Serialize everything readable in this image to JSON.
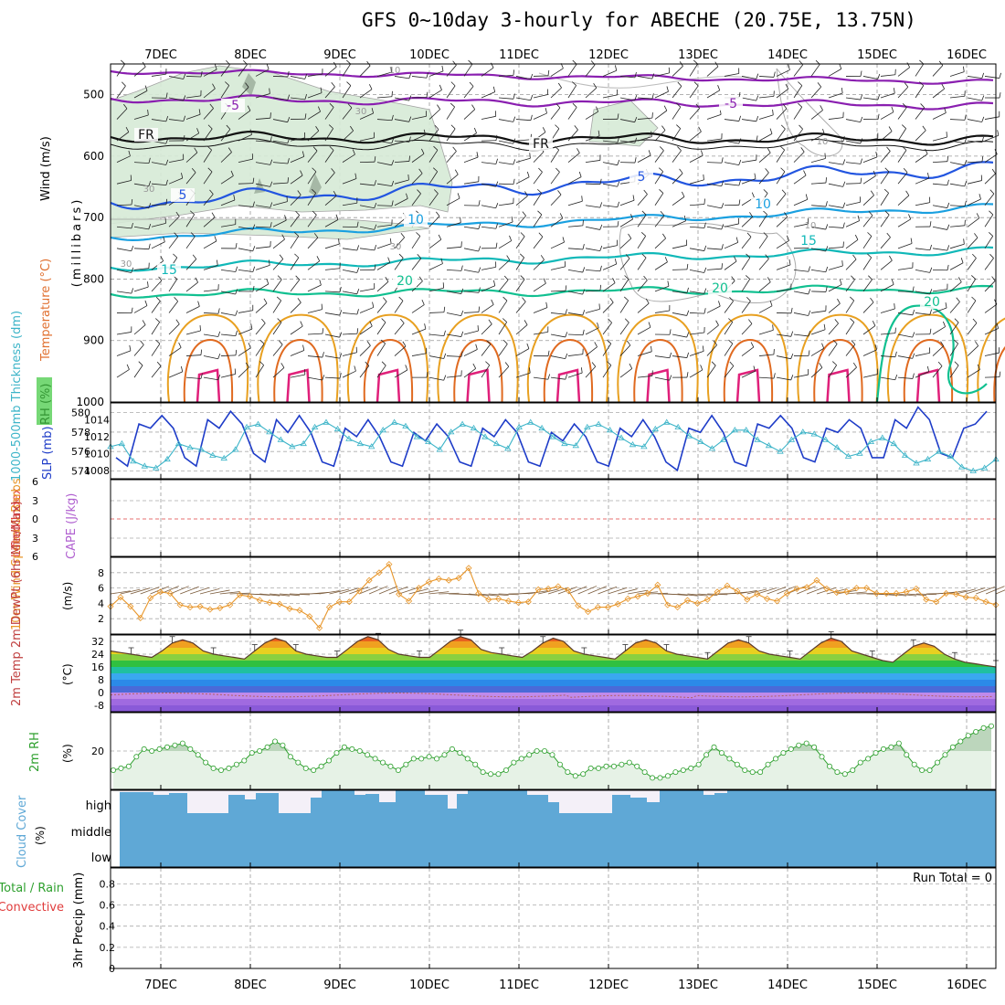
{
  "title": "GFS 0~10day 3-hourly for ABECHE (20.75E, 13.75N)",
  "days": [
    "7DEC",
    "8DEC",
    "9DEC",
    "10DEC",
    "11DEC",
    "12DEC",
    "13DEC",
    "14DEC",
    "15DEC",
    "16DEC"
  ],
  "panels": {
    "upper": {
      "ylabel_parts": [
        "RH (%)",
        "Temperature (°C)",
        "Wind (m/s)"
      ],
      "ylabel_unit": "(millibars)",
      "yticks": [
        "500",
        "600",
        "700",
        "800",
        "900",
        "1000"
      ],
      "temp_labels": [
        "-5",
        "FR",
        "5",
        "10",
        "15",
        "20"
      ],
      "rh_labels": [
        "10",
        "30"
      ]
    },
    "slp": {
      "left_label": "1000-500mb Thickness (dm)",
      "right_label": "SLP (mb)",
      "left_ticks": [
        "574",
        "576",
        "578",
        "580"
      ],
      "right_ticks": [
        "1008",
        "1010",
        "1012",
        "1014"
      ]
    },
    "cape": {
      "label_li": "Lifted Index",
      "label_cape": "CAPE (J/kg)",
      "ticks": [
        "6",
        "3",
        "0",
        "3",
        "6"
      ]
    },
    "wind10": {
      "label": "10m Wind Speed & Barbs",
      "unit": "(m/s)",
      "ticks": [
        "2",
        "4",
        "6",
        "8"
      ]
    },
    "temp2m": {
      "label": "2m Temp 2m DewPt (6hr Min/Max)",
      "unit": "(°C)",
      "ticks": [
        "-8",
        "0",
        "8",
        "16",
        "24",
        "32"
      ]
    },
    "rh2m": {
      "label": "2m RH",
      "unit": "(%)",
      "ticks": [
        "20"
      ]
    },
    "cloud": {
      "label": "Cloud Cover",
      "unit": "(%)",
      "levels": [
        "high",
        "middle",
        "low"
      ]
    },
    "precip": {
      "label_total": "Total / Rain",
      "label_conv": "Convective",
      "label_axis": "3hr Precip (mm)",
      "ticks": [
        "0",
        "0.2",
        "0.4",
        "0.6",
        "0.8"
      ],
      "run_total": "Run Total = 0"
    }
  },
  "colors": {
    "slp": "#1e3cc8",
    "thickness": "#3cb4c8",
    "wind": "#e8962a",
    "rh": "#2ea02e",
    "cloud": "#5fa8d6",
    "li": "#e03c3c",
    "cape": "#b060d0"
  },
  "chart_data": [
    {
      "type": "line",
      "title": "SLP / 1000-500mb Thickness",
      "ylim_slp": [
        1007,
        1016
      ],
      "series": [
        {
          "name": "SLP (mb)",
          "values": [
            1009.5,
            1008.5,
            1013.5,
            1013,
            1014.5,
            1013,
            1009.5,
            1008.5,
            1014,
            1013,
            1015,
            1013.5,
            1010,
            1009,
            1014,
            1012.5,
            1014.5,
            1012.5,
            1009,
            1008.5,
            1013,
            1012,
            1014,
            1012,
            1009,
            1008.5,
            1012.5,
            1011.5,
            1013.5,
            1012,
            1009,
            1008.5,
            1013,
            1012,
            1014,
            1012.5,
            1009,
            1008.5,
            1012.5,
            1011.5,
            1013.5,
            1012,
            1009,
            1008.5,
            1013,
            1012,
            1014,
            1012,
            1009,
            1008,
            1013,
            1012.5,
            1014.5,
            1012.5,
            1009,
            1008.5,
            1013.5,
            1013,
            1014.5,
            1013,
            1009.5,
            1009,
            1013,
            1012.5,
            1014,
            1013,
            1009.5,
            1009.5,
            1014,
            1013,
            1015.5,
            1014,
            1010,
            1009.5,
            1013,
            1013.5,
            1015
          ]
        },
        {
          "name": "1000-500mb Thickness (dm)",
          "values": [
            576.5,
            576.8,
            575,
            574.5,
            574.3,
            575.2,
            576.8,
            576.4,
            576.2,
            575.6,
            575.3,
            576.2,
            578.5,
            578.8,
            578,
            577.2,
            576.5,
            576.8,
            578.5,
            579,
            578.3,
            577.3,
            576.8,
            576.5,
            578.2,
            579,
            578.6,
            577.5,
            577,
            576.2,
            578,
            578.8,
            578.4,
            577.5,
            576.8,
            576.3,
            578.5,
            579,
            578.4,
            577.5,
            576.8,
            576.6,
            578.5,
            578.8,
            578.2,
            577.4,
            576.7,
            576.5,
            578.3,
            579,
            578.5,
            577.6,
            577,
            576.3,
            577.2,
            578.2,
            578.2,
            577.2,
            576.6,
            576,
            577.2,
            578,
            577.8,
            577.2,
            576.4,
            575.5,
            575.8,
            577,
            577.4,
            576.8,
            575.6,
            574.8,
            575.2,
            576,
            575.5,
            574.4,
            574,
            574.3,
            575.2
          ]
        }
      ]
    },
    {
      "type": "line",
      "title": "10m Wind Speed",
      "ylim": [
        0,
        10
      ],
      "values": [
        3.6,
        4.8,
        3.6,
        2.1,
        4.7,
        5.5,
        5.3,
        3.8,
        3.5,
        3.6,
        3.2,
        3.4,
        3.8,
        5.1,
        4.9,
        4.4,
        4.1,
        3.9,
        3.3,
        3.1,
        2.3,
        0.8,
        3.5,
        4.2,
        4.2,
        5.6,
        7,
        8,
        9.1,
        5.2,
        4.3,
        6,
        6.8,
        7.2,
        7,
        7.3,
        8.6,
        5.3,
        4.5,
        4.6,
        4.3,
        4.1,
        4.2,
        5.8,
        5.9,
        6.2,
        5.7,
        3.7,
        2.9,
        3.5,
        3.5,
        3.9,
        4.6,
        4.9,
        5.3,
        6.4,
        3.8,
        3.5,
        4.4,
        4,
        4.5,
        5.5,
        6.3,
        5.6,
        4.5,
        5.2,
        4.6,
        4.3,
        5.3,
        5.9,
        6.1,
        7,
        5.9,
        5.4,
        5.5,
        6,
        6,
        5.3,
        5.3,
        5.3,
        5.5,
        5.9,
        4.5,
        4.2,
        5.3,
        5.2,
        4.8,
        4.7,
        4.2,
        3.8
      ]
    },
    {
      "type": "area",
      "title": "2m Temp",
      "ylim": [
        -12,
        36
      ],
      "values": [
        26,
        25,
        24,
        23,
        22,
        26,
        31,
        33,
        31,
        26,
        24,
        23,
        22,
        21,
        26,
        31,
        34,
        32,
        26,
        24,
        23,
        22,
        22,
        27,
        32,
        35,
        33,
        27,
        24,
        23,
        22,
        22,
        27,
        32,
        35,
        33,
        27,
        25,
        24,
        23,
        22,
        26,
        31,
        34,
        32,
        26,
        24,
        23,
        22,
        21,
        26,
        31,
        33,
        31,
        26,
        24,
        23,
        22,
        21,
        26,
        31,
        33,
        31,
        26,
        24,
        23,
        22,
        21,
        26,
        31,
        34,
        32,
        26,
        24,
        22,
        20,
        19,
        24,
        29,
        31,
        29,
        24,
        21,
        19,
        18,
        17,
        16
      ]
    },
    {
      "type": "line",
      "title": "2m RH",
      "ylim": [
        0,
        40
      ],
      "values": [
        10,
        11,
        12,
        17,
        21,
        20,
        21,
        22,
        23,
        24,
        21,
        18,
        14,
        11,
        10,
        11,
        13,
        15,
        19,
        20,
        22,
        25,
        23,
        17,
        14,
        11,
        10,
        12,
        15,
        19,
        22,
        21,
        20,
        18,
        16,
        14,
        12,
        10,
        13,
        16,
        16,
        17,
        16,
        18,
        21,
        19,
        16,
        13,
        9,
        8,
        8,
        10,
        14,
        16,
        18,
        20,
        20,
        18,
        13,
        9,
        7,
        8,
        11,
        11,
        12,
        12,
        13,
        14,
        12,
        9,
        6,
        6,
        7,
        9,
        10,
        11,
        13,
        18,
        22,
        19,
        16,
        13,
        10,
        9,
        9,
        13,
        16,
        19,
        21,
        23,
        24,
        22,
        17,
        12,
        9,
        8,
        10,
        14,
        16,
        19,
        21,
        22,
        24,
        18,
        13,
        10,
        10,
        14,
        18,
        22,
        25,
        28,
        30,
        32,
        33
      ]
    }
  ]
}
